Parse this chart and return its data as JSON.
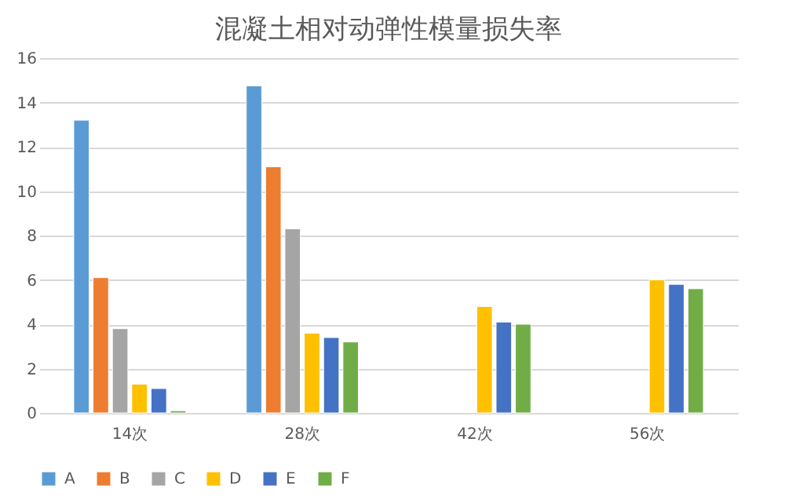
{
  "chart_data": {
    "type": "bar",
    "title": "混凝土相对动弹性模量损失率",
    "categories": [
      "14次",
      "28次",
      "42次",
      "56次"
    ],
    "series": [
      {
        "name": "A",
        "color": "#5b9bd5",
        "values": [
          13.2,
          14.75,
          null,
          null
        ]
      },
      {
        "name": "B",
        "color": "#ed7d31",
        "values": [
          6.1,
          11.1,
          null,
          null
        ]
      },
      {
        "name": "C",
        "color": "#a5a5a5",
        "values": [
          3.8,
          8.3,
          null,
          null
        ]
      },
      {
        "name": "D",
        "color": "#ffc000",
        "values": [
          1.3,
          3.6,
          4.8,
          6.0
        ]
      },
      {
        "name": "E",
        "color": "#4472c4",
        "values": [
          1.1,
          3.4,
          4.1,
          5.8
        ]
      },
      {
        "name": "F",
        "color": "#70ad47",
        "values": [
          0.1,
          3.2,
          4.0,
          5.6
        ]
      }
    ],
    "ylim": [
      0,
      16
    ],
    "yticks": [
      0,
      2,
      4,
      6,
      8,
      10,
      12,
      14,
      16
    ],
    "grid": "y",
    "legend": "bottom"
  }
}
